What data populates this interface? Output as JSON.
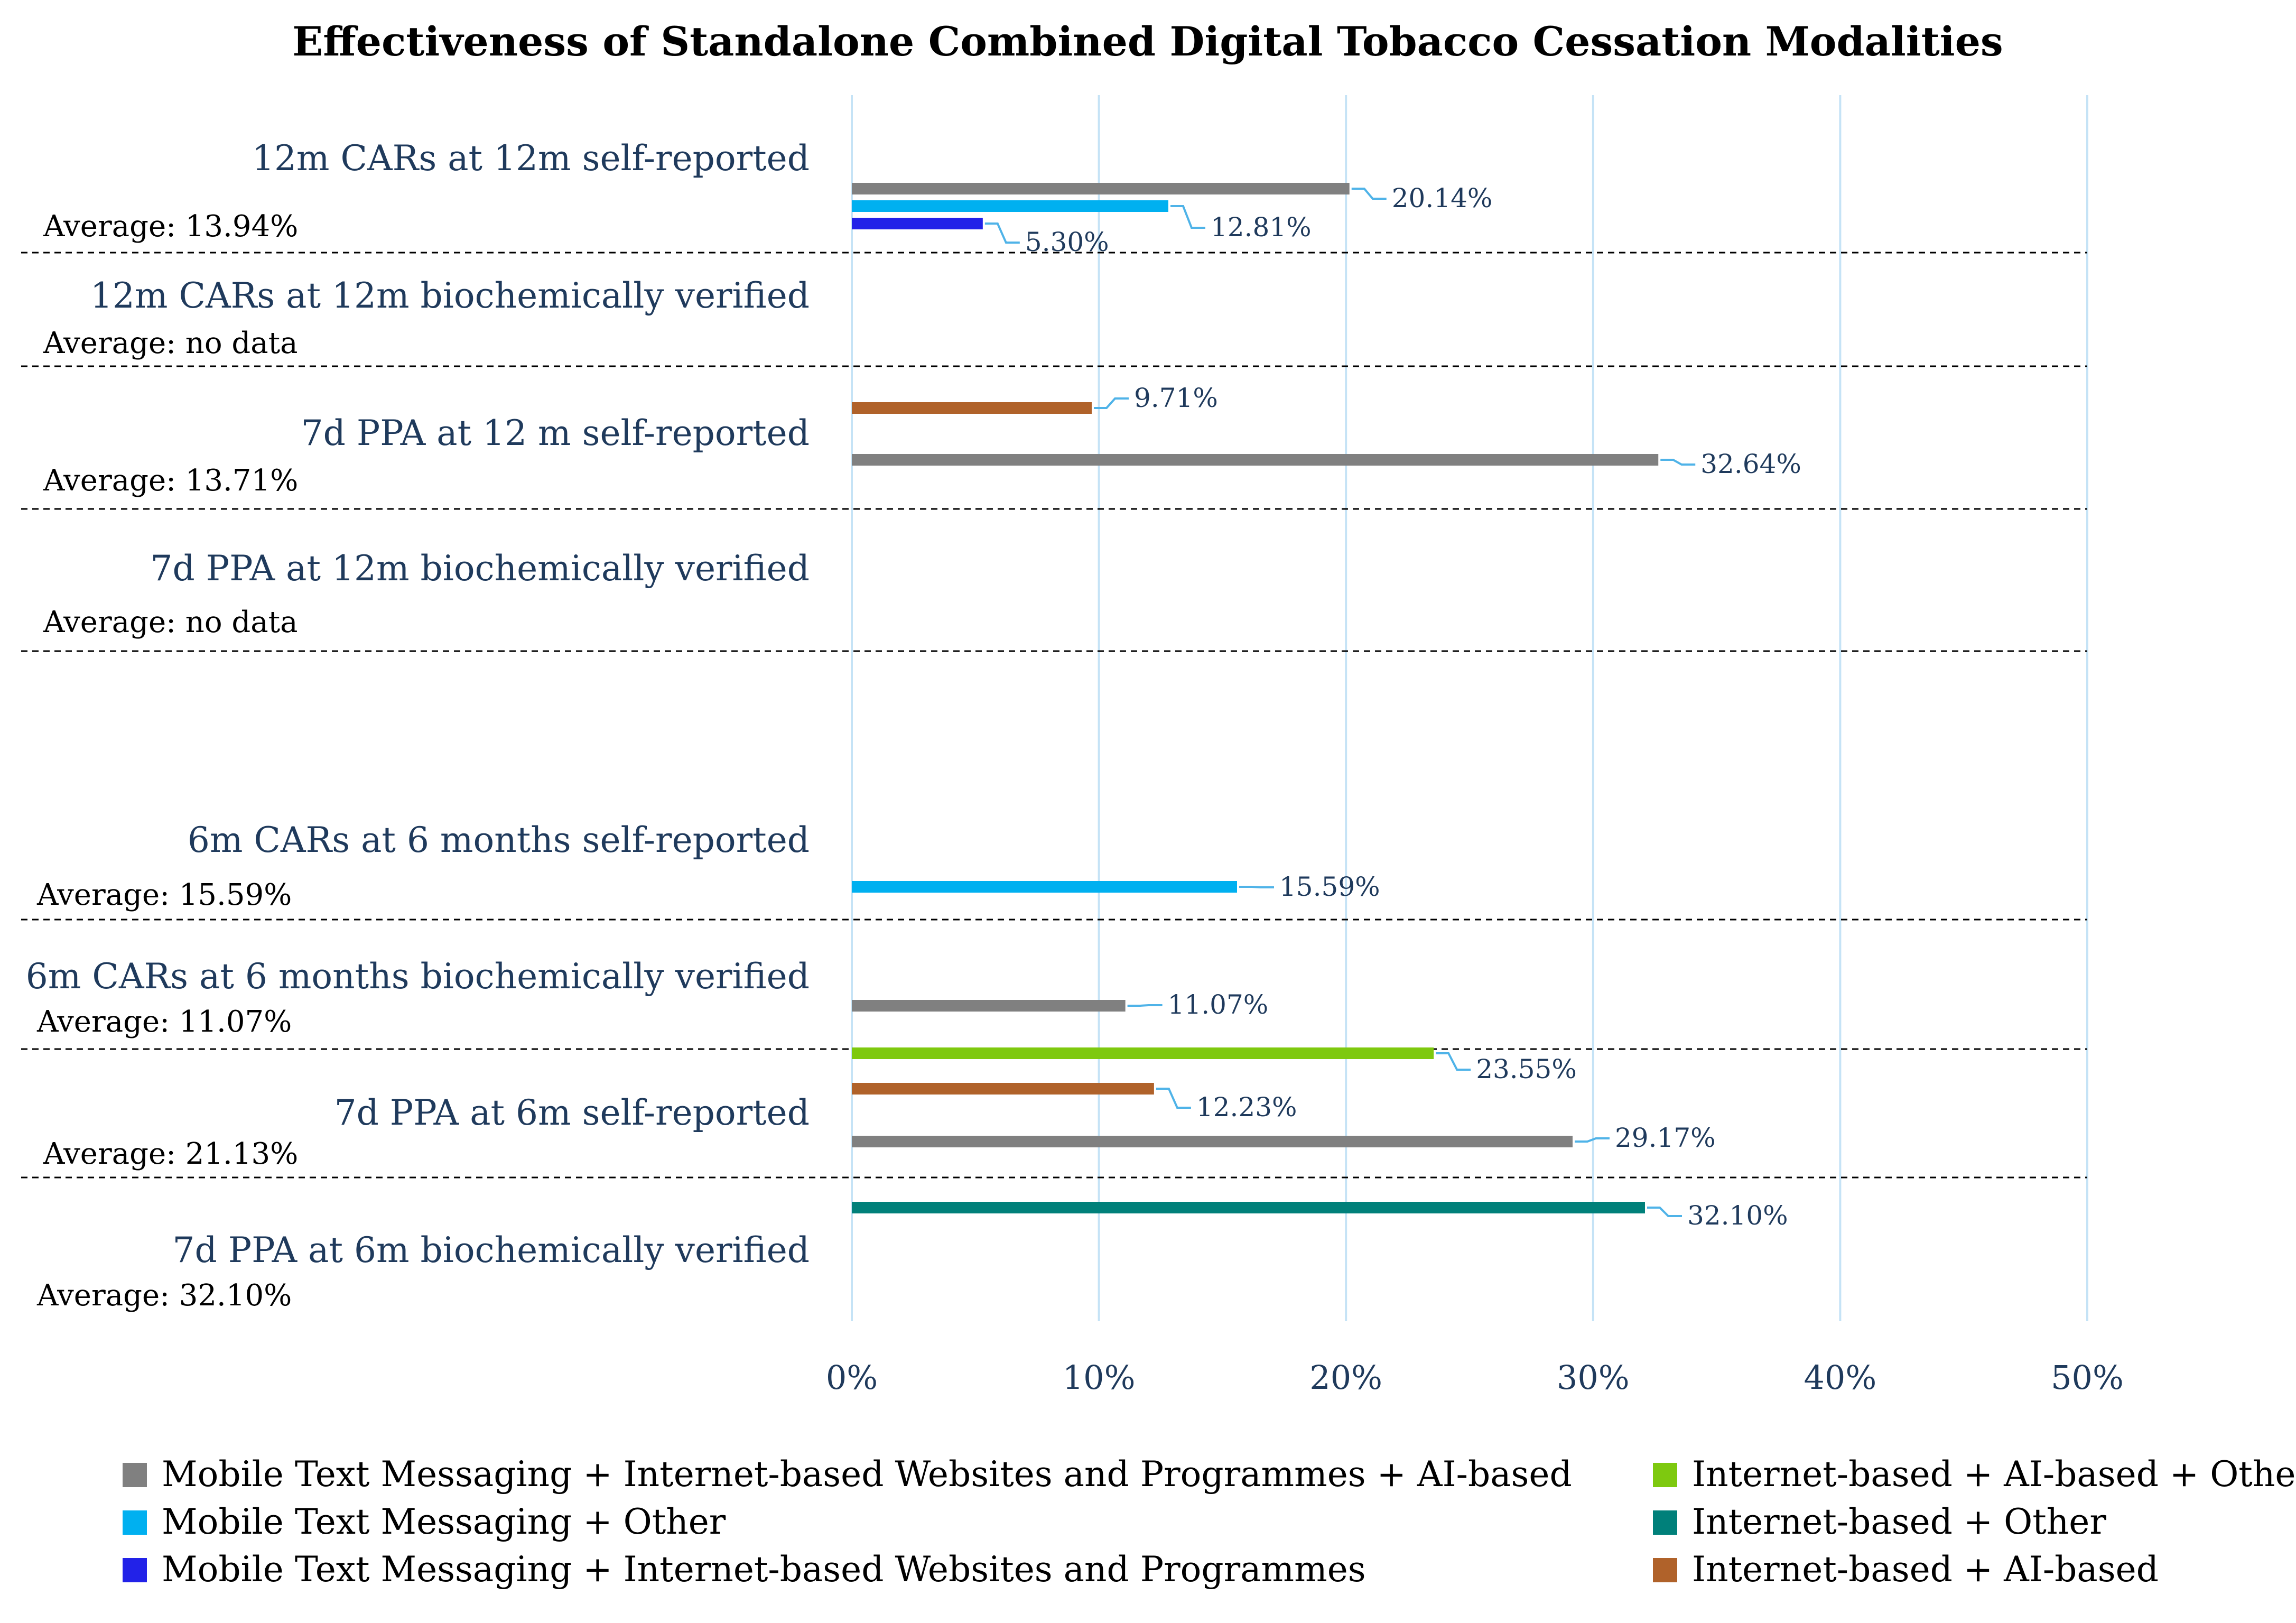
{
  "chart_data": {
    "type": "bar",
    "orientation": "horizontal",
    "title": "Effectiveness of Standalone Combined Digital Tobacco Cessation Modalities",
    "xlabel": "",
    "ylabel": "",
    "xlim": [
      0,
      50
    ],
    "x_ticks": [
      "0%",
      "10%",
      "20%",
      "30%",
      "40%",
      "50%"
    ],
    "grid": true,
    "legend_position": "bottom",
    "series": [
      {
        "key": "mtm_web_ai",
        "name": "Mobile Text Messaging + Internet-based Websites and Programmes + AI-based",
        "color": "#808080"
      },
      {
        "key": "mtm_other",
        "name": "Mobile Text Messaging + Other",
        "color": "#00b0f0"
      },
      {
        "key": "mtm_web",
        "name": "Mobile Text Messaging + Internet-based Websites and Programmes",
        "color": "#2222e8"
      },
      {
        "key": "web_ai_other",
        "name": "Internet-based + AI-based + Other",
        "color": "#7ec90f"
      },
      {
        "key": "web_other",
        "name": "Internet-based + Other",
        "color": "#00807a"
      },
      {
        "key": "web_ai",
        "name": "Internet-based + AI-based",
        "color": "#b0622a"
      }
    ],
    "categories": [
      {
        "label": "12m CARs at 12m self-reported",
        "average": "Average: 13.94%",
        "bars": [
          {
            "series": "mtm_web_ai",
            "value": 20.14,
            "label": "20.14%"
          },
          {
            "series": "mtm_other",
            "value": 12.81,
            "label": "12.81%"
          },
          {
            "series": "mtm_web",
            "value": 5.3,
            "label": "5.30%"
          }
        ]
      },
      {
        "label": "12m CARs at 12m biochemically verified",
        "average": "Average: no data",
        "bars": []
      },
      {
        "label": "7d PPA at 12 m self-reported",
        "average": "Average: 13.71%",
        "bars": [
          {
            "series": "web_ai",
            "value": 9.71,
            "label": "9.71%"
          },
          {
            "series": "mtm_web_ai",
            "value": 32.64,
            "label": "32.64%"
          }
        ]
      },
      {
        "label": "7d PPA at 12m biochemically verified",
        "average": "Average: no data",
        "bars": []
      },
      {
        "label": "6m CARs at 6 months self-reported",
        "average": "Average: 15.59%",
        "bars": [
          {
            "series": "mtm_other",
            "value": 15.59,
            "label": "15.59%"
          }
        ]
      },
      {
        "label": "6m CARs at 6 months biochemically verified",
        "average": "Average: 11.07%",
        "bars": [
          {
            "series": "mtm_web_ai",
            "value": 11.07,
            "label": "11.07%"
          }
        ]
      },
      {
        "label": "7d PPA at 6m self-reported",
        "average": "Average: 21.13%",
        "bars": [
          {
            "series": "web_ai_other",
            "value": 23.55,
            "label": "23.55%"
          },
          {
            "series": "web_ai",
            "value": 12.23,
            "label": "12.23%"
          },
          {
            "series": "mtm_web_ai",
            "value": 29.17,
            "label": "29.17%"
          }
        ]
      },
      {
        "label": "7d PPA at 6m biochemically verified",
        "average": "Average: 32.10%",
        "bars": [
          {
            "series": "web_other",
            "value": 32.1,
            "label": "32.10%"
          }
        ]
      }
    ]
  }
}
